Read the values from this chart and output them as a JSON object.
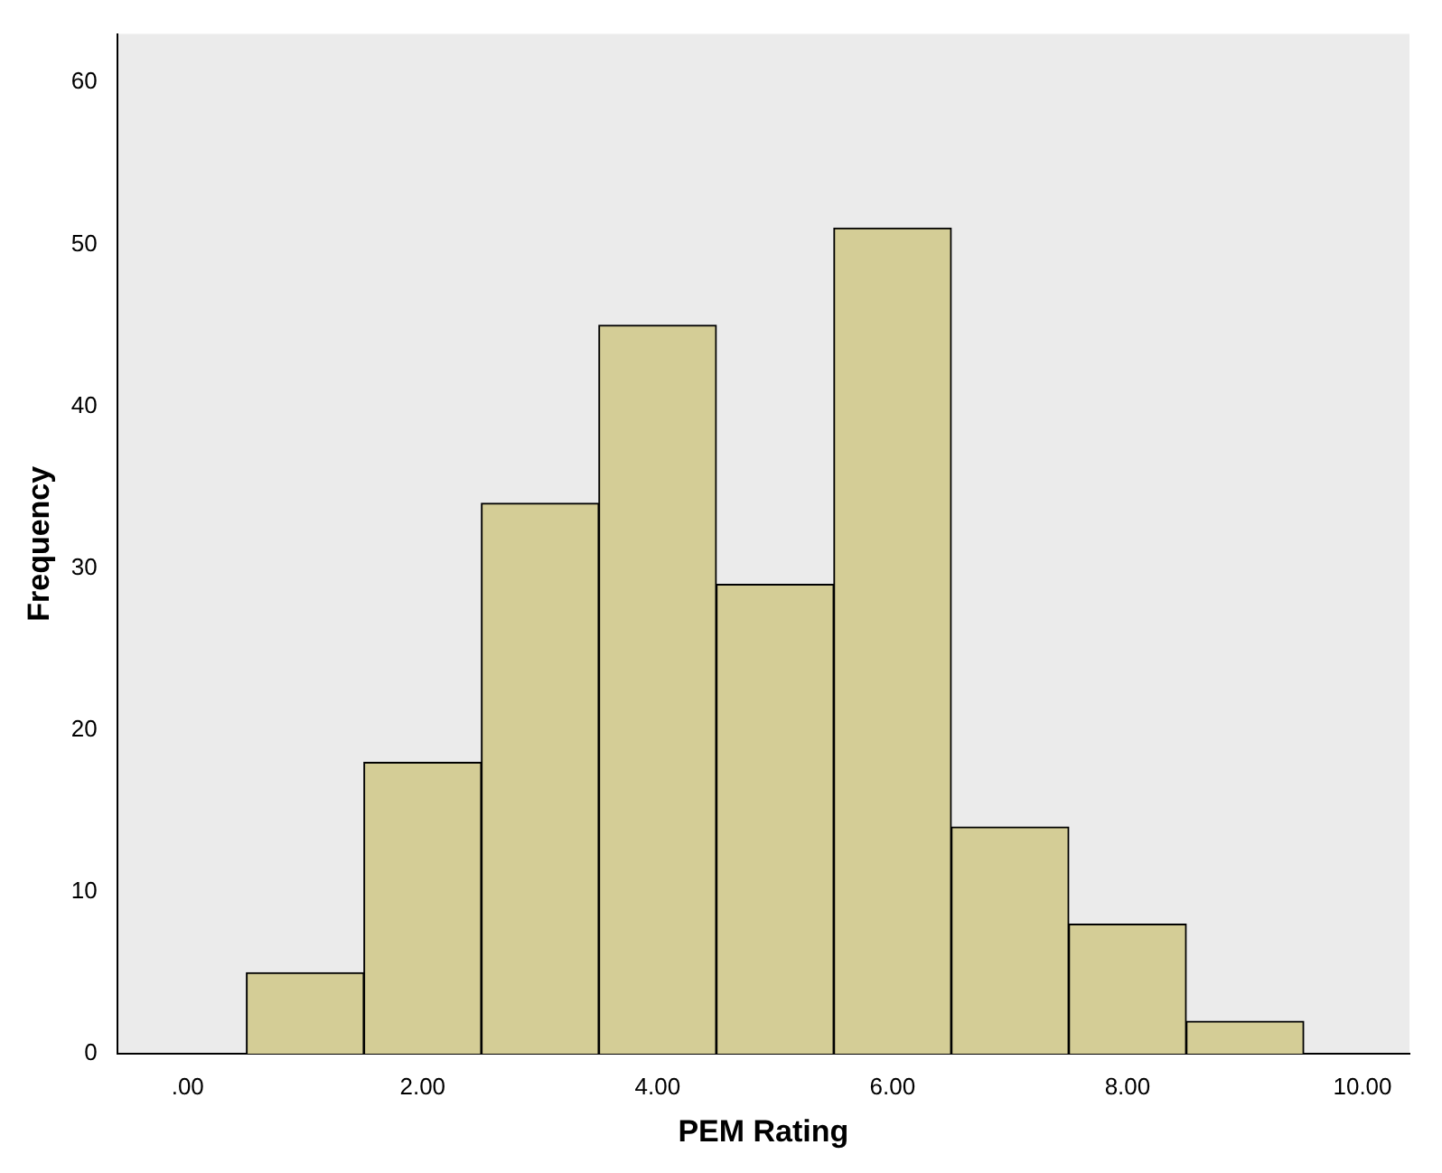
{
  "chart_data": {
    "type": "histogram",
    "xlabel": "PEM Rating",
    "ylabel": "Frequency",
    "bins": [
      0.5,
      1.5,
      2.5,
      3.5,
      4.5,
      5.5,
      6.5,
      7.5,
      8.5,
      9.5
    ],
    "values": [
      5,
      18,
      34,
      45,
      29,
      51,
      14,
      8,
      2
    ],
    "color": "#d4cd96",
    "xlim": [
      -0.6,
      10.4
    ],
    "xticks": [
      {
        "value": 0,
        "label": ".00"
      },
      {
        "value": 2,
        "label": "2.00"
      },
      {
        "value": 4,
        "label": "4.00"
      },
      {
        "value": 6,
        "label": "6.00"
      },
      {
        "value": 8,
        "label": "8.00"
      },
      {
        "value": 10,
        "label": "10.00"
      }
    ],
    "ylim": [
      0,
      63
    ],
    "yticks": [
      0,
      10,
      20,
      30,
      40,
      50,
      60
    ],
    "grid": false,
    "legend": false
  }
}
